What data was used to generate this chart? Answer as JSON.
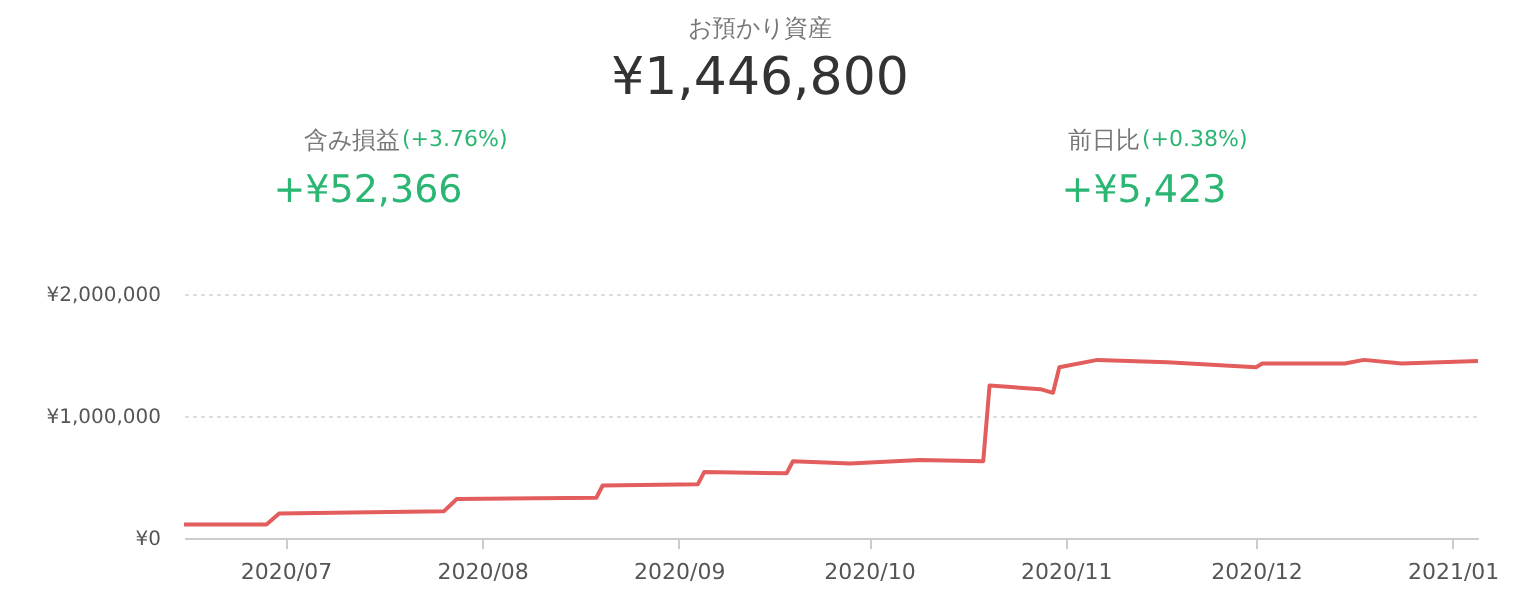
{
  "chart_data": {
    "type": "line",
    "title": "お預かり資産",
    "subtitle": "¥1,446,800",
    "annotations": [
      "含み損益",
      "(+3.76%)",
      "+¥52,366",
      "前日比",
      "(+0.38%)",
      "+¥5,423"
    ],
    "x": [
      "2020-06-15",
      "2020-06-28",
      "2020-06-30",
      "2020-07-26",
      "2020-07-28",
      "2020-08-19",
      "2020-08-20",
      "2020-09-04",
      "2020-09-05",
      "2020-09-18",
      "2020-09-19",
      "2020-09-28",
      "2020-10-09",
      "2020-10-19",
      "2020-10-20",
      "2020-10-28",
      "2020-10-30",
      "2020-10-31",
      "2020-11-06",
      "2020-11-17",
      "2020-12-01",
      "2020-12-02",
      "2020-12-15",
      "2020-12-18",
      "2020-12-24",
      "2021-01-05"
    ],
    "series": [
      {
        "color": "#e35d5d",
        "values": [
          110000,
          110000,
          200000,
          220000,
          320000,
          330000,
          430000,
          440000,
          540000,
          530000,
          630000,
          610000,
          640000,
          630000,
          1250000,
          1220000,
          1190000,
          1400000,
          1460000,
          1440000,
          1400000,
          1430000,
          1430000,
          1460000,
          1430000,
          1450000
        ]
      }
    ],
    "xlim": [
      "2020-06-15",
      "2021-01-05"
    ],
    "xticks": [
      {
        "value": "2020-07-01",
        "label": "2020/07"
      },
      {
        "value": "2020-08-01",
        "label": "2020/08"
      },
      {
        "value": "2020-09-01",
        "label": "2020/09"
      },
      {
        "value": "2020-10-01",
        "label": "2020/10"
      },
      {
        "value": "2020-11-01",
        "label": "2020/11"
      },
      {
        "value": "2020-12-01",
        "label": "2020/12"
      },
      {
        "value": "2021-01-01",
        "label": "2021/01"
      }
    ],
    "ylim": [
      0,
      2000000
    ],
    "yticks": [
      {
        "value": 0,
        "label": "¥0"
      },
      {
        "value": 1000000,
        "label": "¥1,000,000"
      },
      {
        "value": 2000000,
        "label": "¥2,000,000"
      }
    ],
    "grid": "y",
    "marker": "none",
    "line_style": "solid"
  }
}
